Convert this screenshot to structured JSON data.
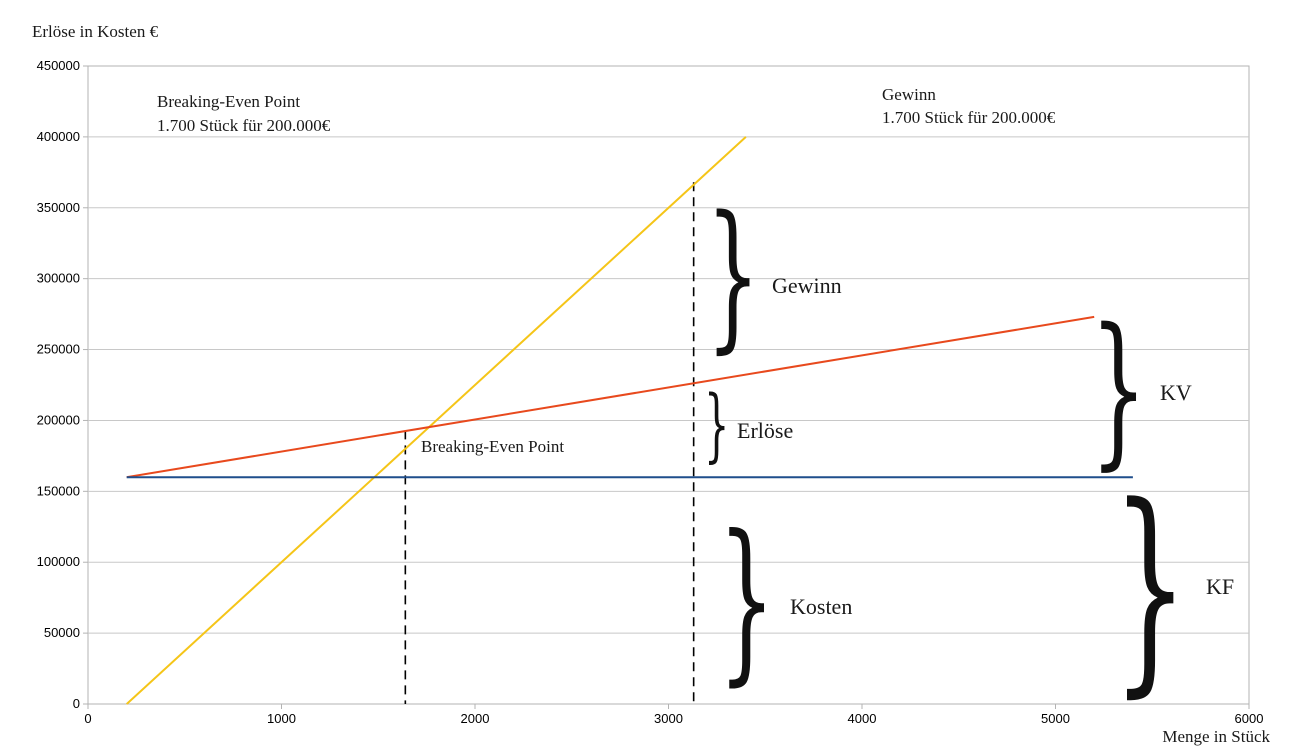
{
  "chart_data": {
    "type": "line",
    "ylabel": "Erlöse in Kosten €",
    "xlabel": "Menge in Stück",
    "xlim": [
      0,
      6000
    ],
    "ylim": [
      0,
      450000
    ],
    "x_ticks": [
      "0",
      "1000",
      "2000",
      "3000",
      "4000",
      "5000",
      "6000"
    ],
    "y_ticks": [
      "0",
      "50000",
      "100000",
      "150000",
      "200000",
      "250000",
      "300000",
      "350000",
      "400000",
      "450000"
    ],
    "grid": "horizontal",
    "series": [
      {
        "color": "#f5c518",
        "points": [
          [
            200,
            0
          ],
          [
            3400,
            400000
          ]
        ]
      },
      {
        "color": "#e8491d",
        "points": [
          [
            200,
            160000
          ],
          [
            5200,
            273000
          ]
        ]
      },
      {
        "color": "#1f4e8c",
        "points": [
          [
            200,
            160000
          ],
          [
            5400,
            160000
          ]
        ]
      }
    ],
    "vertical_markers": [
      {
        "x": 1640,
        "y_top": 193000
      },
      {
        "x": 3130,
        "y_top": 368000
      }
    ],
    "annotations": {
      "breakeven_title": "Breaking-Even Point",
      "breakeven_detail": "1.700 Stück für 200.000€",
      "gewinn_title": "Gewinn",
      "gewinn_detail": "1.700 Stück für 200.000€",
      "breakeven_marker": "Breaking-Even Point",
      "brace_gewinn": "Gewinn",
      "brace_erloese": "Erlöse",
      "brace_kosten": "Kosten",
      "brace_kv": "KV",
      "brace_kf": "KF"
    }
  }
}
